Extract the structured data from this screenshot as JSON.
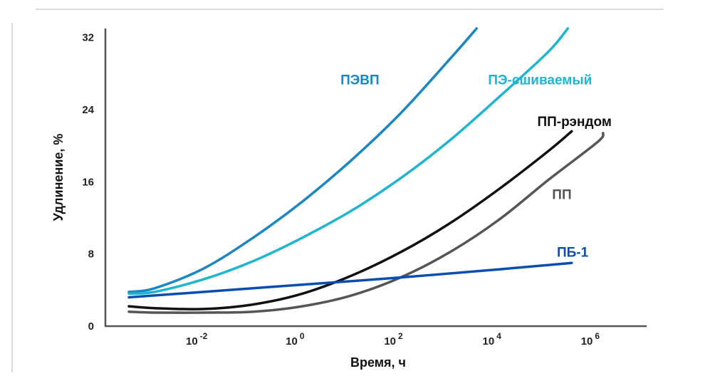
{
  "chart_data": {
    "type": "line",
    "xlabel": "Время, ч",
    "ylabel": "Удлинение, %",
    "x_scale": "log",
    "xlim": [
      0.0001,
      10000000
    ],
    "ylim": [
      0,
      33
    ],
    "grid": false,
    "x_ticks": [
      {
        "value": 0.01,
        "base": "10",
        "exp": "-2"
      },
      {
        "value": 1,
        "base": "10",
        "exp": "0"
      },
      {
        "value": 100,
        "base": "10",
        "exp": "2"
      },
      {
        "value": 10000,
        "base": "10",
        "exp": "4"
      },
      {
        "value": 1000000,
        "base": "10",
        "exp": "6"
      }
    ],
    "y_ticks": [
      {
        "value": 0,
        "label": "0"
      },
      {
        "value": 8,
        "label": "8"
      },
      {
        "value": 16,
        "label": "16"
      },
      {
        "value": 24,
        "label": "24"
      },
      {
        "value": 32,
        "label": "32"
      }
    ],
    "series": [
      {
        "name": "ПЭВП",
        "color": "#1a86c2",
        "label_at": {
          "x": 6,
          "y": 26.8
        },
        "points": [
          {
            "x": 0.0003,
            "y": 3.8
          },
          {
            "x": 0.001,
            "y": 4.2
          },
          {
            "x": 0.01,
            "y": 6.4
          },
          {
            "x": 0.1,
            "y": 9.8
          },
          {
            "x": 1,
            "y": 13.8
          },
          {
            "x": 10,
            "y": 18.4
          },
          {
            "x": 100,
            "y": 23.6
          },
          {
            "x": 1000,
            "y": 29.6
          },
          {
            "x": 3500,
            "y": 33
          }
        ]
      },
      {
        "name": "ПЭ-сшиваемый",
        "color": "#1fb4d0",
        "label_at": {
          "x": 6000,
          "y": 26.8
        },
        "points": [
          {
            "x": 0.0003,
            "y": 3.6
          },
          {
            "x": 0.001,
            "y": 3.8
          },
          {
            "x": 0.01,
            "y": 5.2
          },
          {
            "x": 0.1,
            "y": 7.2
          },
          {
            "x": 1,
            "y": 9.8
          },
          {
            "x": 10,
            "y": 12.8
          },
          {
            "x": 100,
            "y": 16.4
          },
          {
            "x": 1000,
            "y": 20.6
          },
          {
            "x": 10000,
            "y": 25.4
          },
          {
            "x": 100000,
            "y": 30.4
          },
          {
            "x": 250000,
            "y": 33
          }
        ]
      },
      {
        "name": "ПП-рэндом",
        "color": "#111111",
        "label_at": {
          "x": 60000,
          "y": 22.2
        },
        "points": [
          {
            "x": 0.0003,
            "y": 2.2
          },
          {
            "x": 0.001,
            "y": 2.0
          },
          {
            "x": 0.01,
            "y": 1.9
          },
          {
            "x": 0.1,
            "y": 2.4
          },
          {
            "x": 1,
            "y": 3.6
          },
          {
            "x": 10,
            "y": 5.6
          },
          {
            "x": 100,
            "y": 8.2
          },
          {
            "x": 1000,
            "y": 11.4
          },
          {
            "x": 10000,
            "y": 15.2
          },
          {
            "x": 100000,
            "y": 19.4
          },
          {
            "x": 300000,
            "y": 21.6
          }
        ]
      },
      {
        "name": "ПП",
        "color": "#555555",
        "label_at": {
          "x": 120000,
          "y": 14.1
        },
        "points": [
          {
            "x": 0.0003,
            "y": 1.6
          },
          {
            "x": 0.001,
            "y": 1.5
          },
          {
            "x": 0.01,
            "y": 1.5
          },
          {
            "x": 0.1,
            "y": 1.6
          },
          {
            "x": 1,
            "y": 2.2
          },
          {
            "x": 10,
            "y": 3.4
          },
          {
            "x": 100,
            "y": 5.4
          },
          {
            "x": 1000,
            "y": 8.2
          },
          {
            "x": 10000,
            "y": 11.8
          },
          {
            "x": 100000,
            "y": 16.2
          },
          {
            "x": 1000000,
            "y": 20.4
          },
          {
            "x": 1300000,
            "y": 21.4
          }
        ]
      },
      {
        "name": "ПБ-1",
        "color": "#0a4eb0",
        "label_at": {
          "x": 150000,
          "y": 7.7
        },
        "points": [
          {
            "x": 0.0003,
            "y": 3.2
          },
          {
            "x": 0.01,
            "y": 3.8
          },
          {
            "x": 1,
            "y": 4.6
          },
          {
            "x": 100,
            "y": 5.4
          },
          {
            "x": 10000,
            "y": 6.3
          },
          {
            "x": 300000,
            "y": 7.0
          }
        ]
      }
    ]
  }
}
